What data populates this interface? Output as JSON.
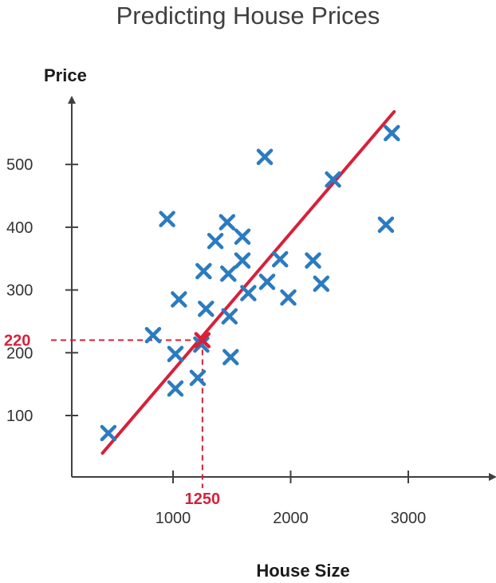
{
  "chart_data": {
    "type": "scatter",
    "title": "Predicting House Prices",
    "xlabel": "House Size",
    "ylabel": "Price",
    "xticks": [
      1000,
      2000,
      3000
    ],
    "yticks": [
      100,
      200,
      300,
      400,
      500
    ],
    "grid": false,
    "colors": {
      "points": "#2B7BC0",
      "line": "#D6213A",
      "axis": "#404040"
    },
    "points": [
      {
        "x": 450,
        "y": 72
      },
      {
        "x": 830,
        "y": 228
      },
      {
        "x": 950,
        "y": 413
      },
      {
        "x": 1020,
        "y": 198
      },
      {
        "x": 1020,
        "y": 143
      },
      {
        "x": 1050,
        "y": 285
      },
      {
        "x": 1210,
        "y": 160
      },
      {
        "x": 1240,
        "y": 213
      },
      {
        "x": 1260,
        "y": 330
      },
      {
        "x": 1280,
        "y": 270
      },
      {
        "x": 1360,
        "y": 378
      },
      {
        "x": 1460,
        "y": 408
      },
      {
        "x": 1470,
        "y": 326
      },
      {
        "x": 1480,
        "y": 258
      },
      {
        "x": 1490,
        "y": 193
      },
      {
        "x": 1590,
        "y": 385
      },
      {
        "x": 1590,
        "y": 347
      },
      {
        "x": 1640,
        "y": 295
      },
      {
        "x": 1780,
        "y": 512
      },
      {
        "x": 1800,
        "y": 313
      },
      {
        "x": 1910,
        "y": 349
      },
      {
        "x": 1980,
        "y": 288
      },
      {
        "x": 2190,
        "y": 347
      },
      {
        "x": 2260,
        "y": 310
      },
      {
        "x": 2360,
        "y": 476
      },
      {
        "x": 2810,
        "y": 404
      },
      {
        "x": 2860,
        "y": 550
      }
    ],
    "regression_line": {
      "x": [
        400,
        2880
      ],
      "y": [
        40,
        584
      ]
    },
    "highlight": {
      "x": 1250,
      "y": 220,
      "x_label": "1250",
      "y_label": "220"
    }
  }
}
